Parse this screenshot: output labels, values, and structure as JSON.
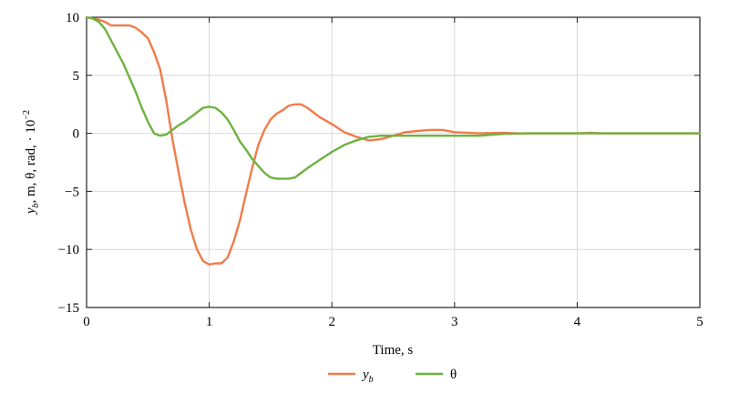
{
  "chart_data": {
    "type": "line",
    "title": "",
    "xlabel": "Time, s",
    "ylabel_parts": {
      "var1": "y",
      "var1_sub": "b",
      "rest": ", m, θ, rad, · 10",
      "exp": "−2"
    },
    "xlim": [
      0,
      5
    ],
    "ylim": [
      -15,
      10
    ],
    "xticks": [
      0,
      1,
      2,
      3,
      4,
      5
    ],
    "xtick_labels": [
      "0",
      "1",
      "2",
      "3",
      "4",
      "5"
    ],
    "yticks": [
      10,
      5,
      0,
      -5,
      -10,
      -15
    ],
    "ytick_labels": [
      "10",
      "5",
      "0",
      "−5",
      "−10",
      "−15"
    ],
    "grid": true,
    "legend_position": "bottom-center",
    "series": [
      {
        "name": "y",
        "name_sub": "b",
        "color": "#f07c4a",
        "x": [
          0,
          0.1,
          0.15,
          0.2,
          0.25,
          0.3,
          0.35,
          0.4,
          0.45,
          0.5,
          0.55,
          0.6,
          0.65,
          0.7,
          0.75,
          0.8,
          0.85,
          0.9,
          0.95,
          1.0,
          1.05,
          1.1,
          1.15,
          1.2,
          1.25,
          1.3,
          1.35,
          1.4,
          1.45,
          1.5,
          1.55,
          1.6,
          1.65,
          1.7,
          1.75,
          1.8,
          1.85,
          1.9,
          2.0,
          2.1,
          2.2,
          2.3,
          2.4,
          2.5,
          2.6,
          2.7,
          2.8,
          2.9,
          3.0,
          3.2,
          3.4,
          3.5,
          3.8,
          4.0,
          4.1,
          4.2,
          4.5,
          5.0
        ],
        "y": [
          10,
          9.8,
          9.6,
          9.3,
          9.3,
          9.3,
          9.3,
          9.1,
          8.7,
          8.2,
          7.0,
          5.5,
          2.8,
          -0.5,
          -3.3,
          -6.0,
          -8.3,
          -10.0,
          -11.0,
          -11.3,
          -11.2,
          -11.2,
          -10.7,
          -9.3,
          -7.5,
          -5.2,
          -3.0,
          -1.0,
          0.3,
          1.2,
          1.7,
          2.0,
          2.4,
          2.5,
          2.5,
          2.2,
          1.8,
          1.4,
          0.8,
          0.1,
          -0.3,
          -0.6,
          -0.5,
          -0.2,
          0.1,
          0.2,
          0.3,
          0.3,
          0.1,
          0.0,
          0.05,
          0.0,
          0.0,
          0.0,
          0.05,
          0.0,
          0.0,
          0.0
        ]
      },
      {
        "name": "θ",
        "color": "#6cb33f",
        "x": [
          0,
          0.05,
          0.1,
          0.15,
          0.2,
          0.25,
          0.3,
          0.35,
          0.4,
          0.45,
          0.5,
          0.55,
          0.6,
          0.65,
          0.7,
          0.75,
          0.8,
          0.85,
          0.9,
          0.95,
          1.0,
          1.05,
          1.1,
          1.15,
          1.2,
          1.25,
          1.3,
          1.35,
          1.4,
          1.45,
          1.5,
          1.55,
          1.6,
          1.65,
          1.7,
          1.75,
          1.8,
          1.9,
          2.0,
          2.1,
          2.2,
          2.3,
          2.4,
          2.5,
          2.6,
          2.8,
          3.0,
          3.2,
          3.4,
          3.6,
          4.0,
          5.0
        ],
        "y": [
          10,
          9.9,
          9.6,
          9.0,
          8.0,
          7.0,
          6.0,
          4.8,
          3.6,
          2.2,
          1.0,
          0.0,
          -0.2,
          -0.1,
          0.3,
          0.7,
          1.0,
          1.4,
          1.8,
          2.2,
          2.3,
          2.2,
          1.8,
          1.2,
          0.3,
          -0.7,
          -1.4,
          -2.2,
          -2.8,
          -3.4,
          -3.8,
          -3.9,
          -3.9,
          -3.9,
          -3.8,
          -3.4,
          -3.0,
          -2.3,
          -1.6,
          -1.0,
          -0.6,
          -0.3,
          -0.2,
          -0.2,
          -0.2,
          -0.2,
          -0.2,
          -0.2,
          -0.05,
          0.0,
          0.0,
          0.0
        ]
      }
    ]
  }
}
